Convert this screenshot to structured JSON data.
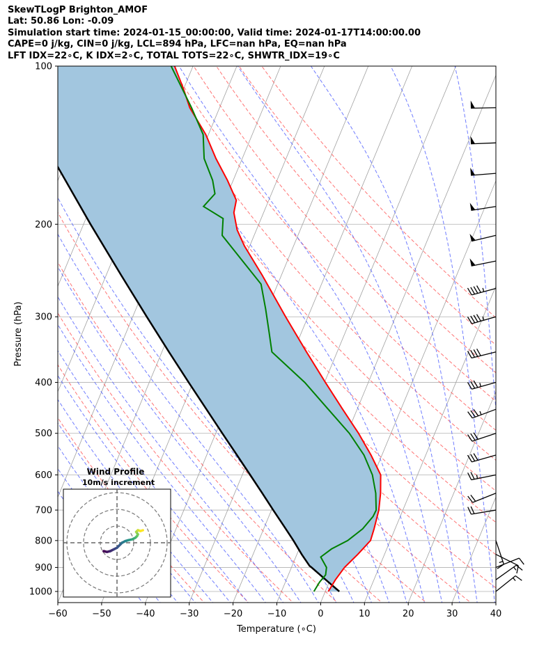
{
  "header": {
    "title": "SkewTLogP Brighton_AMOF",
    "location": "Lat: 50.86   Lon: -0.09",
    "times": "Simulation start time: 2024-01-15_00:00:00, Valid time: 2024-01-17T14:00:00.00",
    "indices_1": "CAPE=0 j/kg, CIN=0 j/kg, LCL=894 hPa, LFC=nan hPa, EQ=nan hPa",
    "indices_2": "LFT IDX=22∘C, K IDX=2∘C, TOTAL TOTS=22∘C, SHWTR_IDX=19∘C"
  },
  "colors": {
    "temperature": "#ff0000",
    "dewpoint": "#008000",
    "parcel": "#000000",
    "cape_fill": "#a2c6df",
    "dry_adiabat": "#ff5a5a",
    "moist_adiabat": "#4b5bff",
    "isotherm": "#a0a0a0"
  },
  "chart_data": [
    {
      "type": "line",
      "kind": "skew-t log-p",
      "xlabel": "Temperature (∘C)",
      "ylabel": "Pressure (hPa)",
      "xlim": [
        -60,
        40
      ],
      "ylim": [
        1050,
        100
      ],
      "yscale": "log",
      "xticks": [
        -60,
        -50,
        -40,
        -30,
        -20,
        -10,
        0,
        10,
        20,
        30,
        40
      ],
      "yticks": [
        1000,
        900,
        800,
        700,
        600,
        500,
        400,
        300,
        200,
        100
      ],
      "grid": true,
      "series": [
        {
          "name": "temperature",
          "points": [
            [
              1000,
              0.7
            ],
            [
              950,
              1.2
            ],
            [
              900,
              2.1
            ],
            [
              850,
              3.9
            ],
            [
              800,
              5.5
            ],
            [
              760,
              5.2
            ],
            [
              700,
              4.5
            ],
            [
              650,
              3.3
            ],
            [
              600,
              1.6
            ],
            [
              550,
              -2.5
            ],
            [
              500,
              -7.4
            ],
            [
              450,
              -13.3
            ],
            [
              400,
              -19.8
            ],
            [
              350,
              -27.0
            ],
            [
              300,
              -35.1
            ],
            [
              250,
              -44.4
            ],
            [
              220,
              -51.2
            ],
            [
              205,
              -54.4
            ],
            [
              190,
              -56.8
            ],
            [
              180,
              -57.4
            ],
            [
              165,
              -61.3
            ],
            [
              150,
              -66.0
            ],
            [
              135,
              -70.6
            ],
            [
              120,
              -76.8
            ],
            [
              110,
              -80.2
            ],
            [
              100,
              -84.2
            ]
          ]
        },
        {
          "name": "dewpoint",
          "points": [
            [
              1000,
              -2.6
            ],
            [
              960,
              -2.2
            ],
            [
              930,
              -1.5
            ],
            [
              900,
              -2.0
            ],
            [
              860,
              -4.3
            ],
            [
              830,
              -2.6
            ],
            [
              800,
              0.3
            ],
            [
              760,
              2.6
            ],
            [
              720,
              3.8
            ],
            [
              700,
              3.9
            ],
            [
              650,
              2.2
            ],
            [
              600,
              -0.3
            ],
            [
              550,
              -4.1
            ],
            [
              500,
              -9.5
            ],
            [
              450,
              -16.6
            ],
            [
              400,
              -24.5
            ],
            [
              350,
              -34.9
            ],
            [
              320,
              -37.5
            ],
            [
              290,
              -40.4
            ],
            [
              260,
              -43.8
            ],
            [
              210,
              -57.3
            ],
            [
              195,
              -58.7
            ],
            [
              185,
              -64.3
            ],
            [
              175,
              -62.9
            ],
            [
              165,
              -64.7
            ],
            [
              150,
              -68.7
            ],
            [
              135,
              -71.2
            ],
            [
              120,
              -76.4
            ],
            [
              100,
              -85.0
            ]
          ]
        },
        {
          "name": "parcel",
          "points": [
            [
              1000,
              3.2
            ],
            [
              950,
              -1.0
            ],
            [
              900,
              -5.4
            ],
            [
              894,
              -6.0
            ],
            [
              850,
              -8.9
            ],
            [
              800,
              -12.1
            ],
            [
              750,
              -15.7
            ],
            [
              700,
              -19.6
            ],
            [
              650,
              -23.7
            ],
            [
              600,
              -28.2
            ],
            [
              550,
              -33.1
            ],
            [
              500,
              -38.5
            ],
            [
              450,
              -44.4
            ],
            [
              400,
              -51.0
            ],
            [
              350,
              -58.4
            ],
            [
              300,
              -66.8
            ],
            [
              250,
              -76.6
            ],
            [
              200,
              -88.4
            ],
            [
              150,
              -103.2
            ],
            [
              100,
              -123.7
            ]
          ]
        }
      ],
      "cape_cin_shading": "between temperature and parcel"
    },
    {
      "type": "line",
      "kind": "wind barbs",
      "units": "knots",
      "barbs": [
        {
          "pressure": 1000,
          "u": -10,
          "v": -8
        },
        {
          "pressure": 950,
          "u": -14,
          "v": -10
        },
        {
          "pressure": 900,
          "u": -10,
          "v": -4
        },
        {
          "pressure": 850,
          "u": -8,
          "v": 4
        },
        {
          "pressure": 800,
          "u": -4,
          "v": 12
        },
        {
          "pressure": 700,
          "u": 18,
          "v": 3
        },
        {
          "pressure": 650,
          "u": 20,
          "v": 8
        },
        {
          "pressure": 600,
          "u": 25,
          "v": 5
        },
        {
          "pressure": 550,
          "u": 28,
          "v": 8
        },
        {
          "pressure": 500,
          "u": 30,
          "v": 10
        },
        {
          "pressure": 450,
          "u": 32,
          "v": 12
        },
        {
          "pressure": 400,
          "u": 36,
          "v": 10
        },
        {
          "pressure": 350,
          "u": 40,
          "v": 10
        },
        {
          "pressure": 300,
          "u": 42,
          "v": 12
        },
        {
          "pressure": 265,
          "u": 45,
          "v": 12
        },
        {
          "pressure": 235,
          "u": 50,
          "v": 10
        },
        {
          "pressure": 210,
          "u": 50,
          "v": 12
        },
        {
          "pressure": 185,
          "u": 50,
          "v": 8
        },
        {
          "pressure": 160,
          "u": 50,
          "v": 4
        },
        {
          "pressure": 140,
          "u": 50,
          "v": 2
        },
        {
          "pressure": 120,
          "u": 48,
          "v": 1
        }
      ]
    },
    {
      "type": "scatter",
      "kind": "hodograph",
      "title": "Wind Profile",
      "subtitle": "10m/s increment",
      "ring_interval": 10,
      "points": [
        [
          -8,
          -5
        ],
        [
          -6,
          -5.5
        ],
        [
          -4,
          -5
        ],
        [
          -2,
          -4
        ],
        [
          0,
          -3
        ],
        [
          2,
          -1
        ],
        [
          3,
          0
        ],
        [
          5,
          1
        ],
        [
          7,
          1.6
        ],
        [
          9,
          2
        ],
        [
          11,
          3
        ],
        [
          12,
          4
        ],
        [
          12.5,
          5
        ],
        [
          11.5,
          6.5
        ],
        [
          12.5,
          7.5
        ],
        [
          14,
          7
        ],
        [
          15.5,
          7.5
        ]
      ]
    }
  ]
}
